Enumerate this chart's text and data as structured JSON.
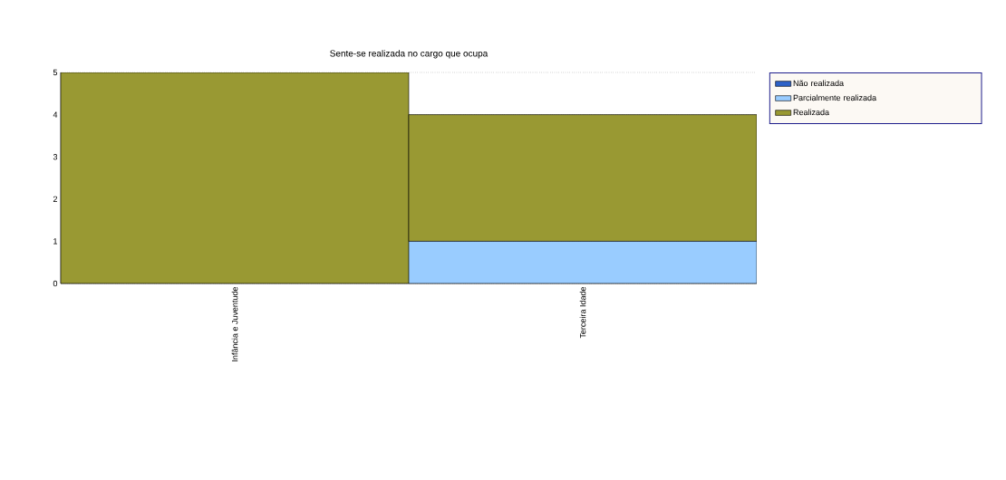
{
  "chart_data": {
    "type": "bar",
    "title": "Sente-se realizada no cargo que ocupa",
    "categories": [
      "Infância e Juventude",
      "Terceira Idade"
    ],
    "series": [
      {
        "name": "Não realizada",
        "color": "#2e62c8",
        "values": [
          0,
          0
        ]
      },
      {
        "name": "Parcialmente realizada",
        "color": "#99ccff",
        "values": [
          0,
          1
        ]
      },
      {
        "name": "Realizada",
        "color": "#999933",
        "values": [
          5,
          3
        ]
      }
    ],
    "stacked": true,
    "ylim": [
      0,
      5
    ],
    "yticks": [
      0,
      1,
      2,
      3,
      4,
      5
    ],
    "grid": "y",
    "legend": "right"
  }
}
